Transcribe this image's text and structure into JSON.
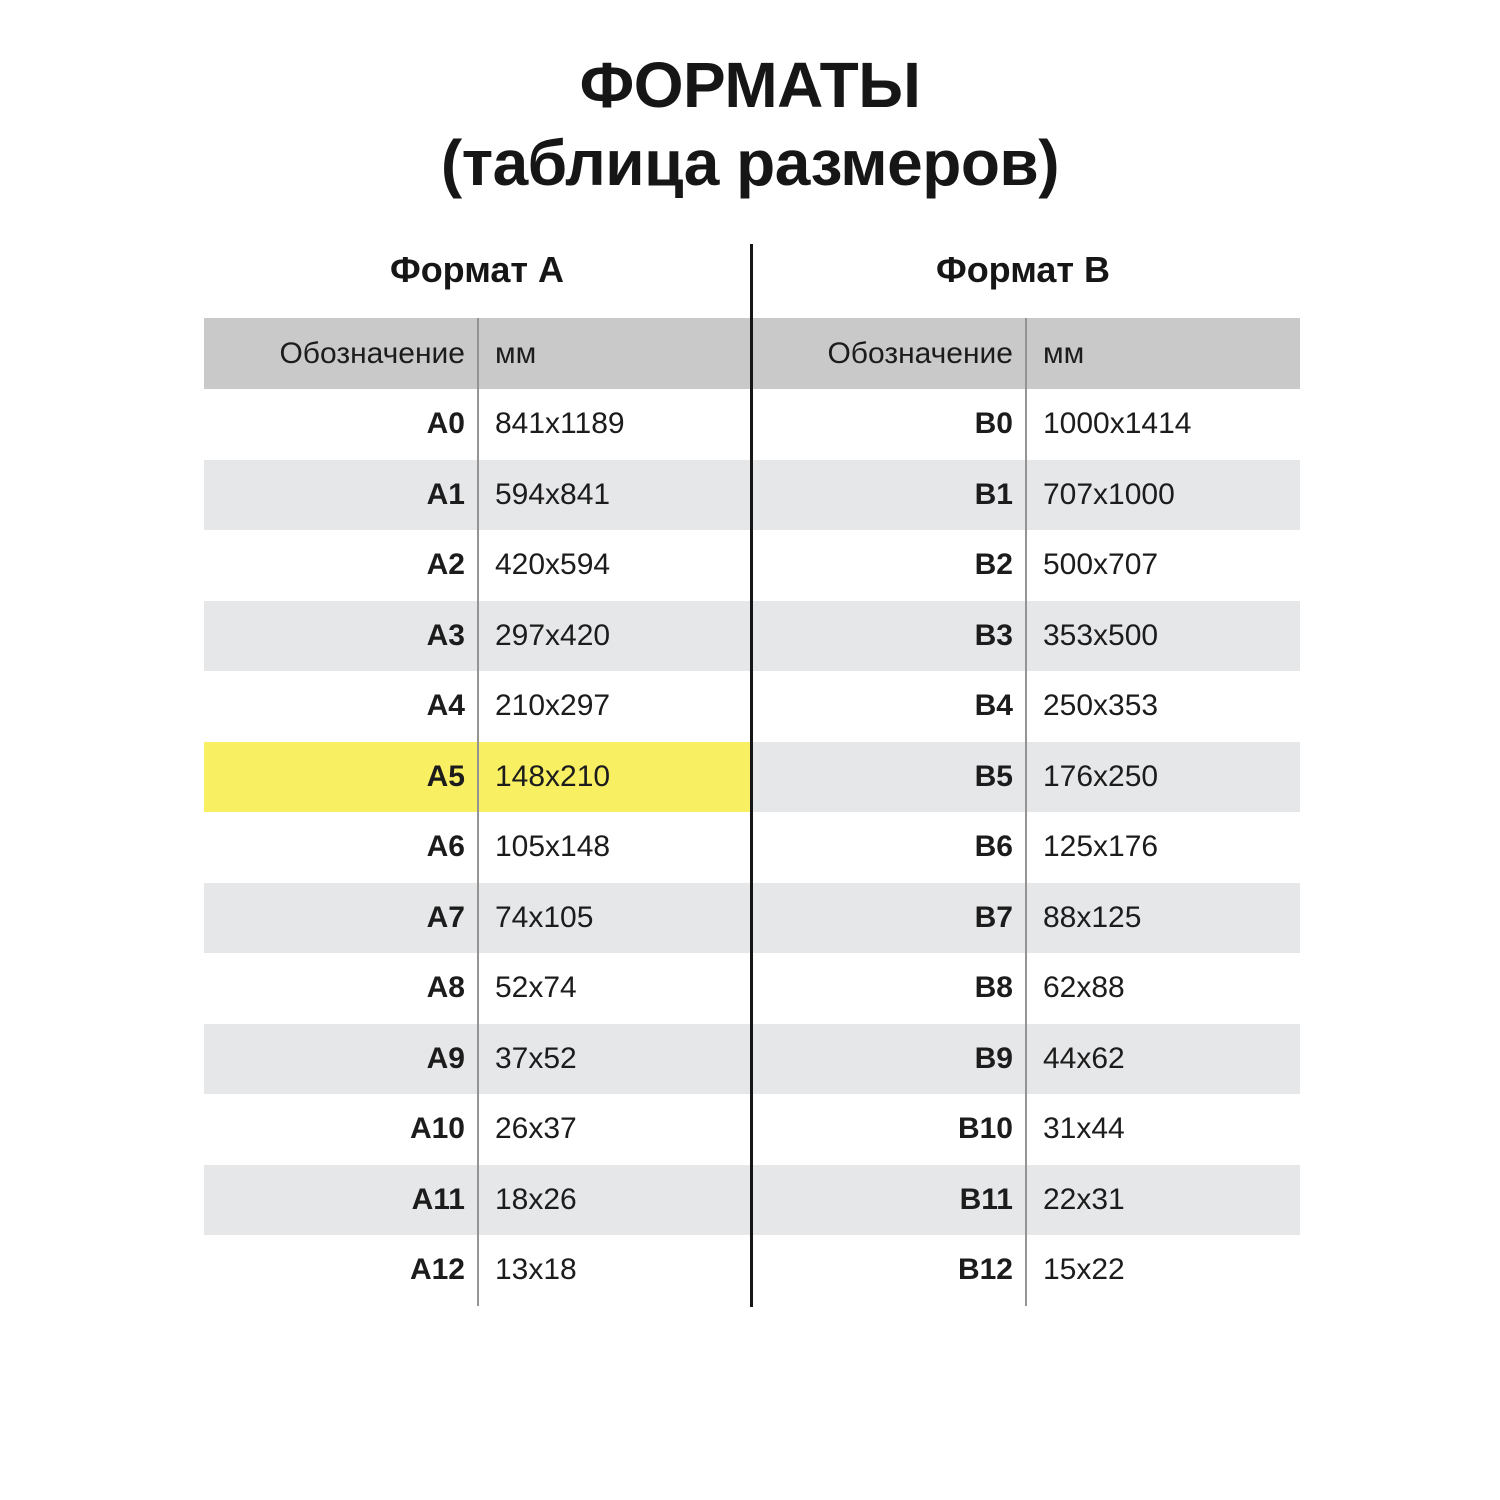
{
  "title": {
    "line1": "ФОРМАТЫ",
    "line2": "(таблица размеров)"
  },
  "format_a": {
    "title": "Формат A",
    "designation_header": "Обозначение",
    "mm_header": "мм"
  },
  "format_b": {
    "title": "Формат B",
    "designation_header": "Обозначение",
    "mm_header": "мм"
  },
  "table": {
    "rows": [
      {
        "a_designation": "A0",
        "a_mm": "841x1189",
        "b_designation": "B0",
        "b_mm": "1000x1414",
        "highlighted": false
      },
      {
        "a_designation": "A1",
        "a_mm": "594x841",
        "b_designation": "B1",
        "b_mm": "707x1000",
        "highlighted": false
      },
      {
        "a_designation": "A2",
        "a_mm": "420x594",
        "b_designation": "B2",
        "b_mm": "500x707",
        "highlighted": false
      },
      {
        "a_designation": "A3",
        "a_mm": "297x420",
        "b_designation": "B3",
        "b_mm": "353x500",
        "highlighted": false
      },
      {
        "a_designation": "A4",
        "a_mm": "210x297",
        "b_designation": "B4",
        "b_mm": "250x353",
        "highlighted": false
      },
      {
        "a_designation": "A5",
        "a_mm": "148x210",
        "b_designation": "B5",
        "b_mm": "176x250",
        "highlighted": true
      },
      {
        "a_designation": "A6",
        "a_mm": "105x148",
        "b_designation": "B6",
        "b_mm": "125x176",
        "highlighted": false
      },
      {
        "a_designation": "A7",
        "a_mm": "74x105",
        "b_designation": "B7",
        "b_mm": "88x125",
        "highlighted": false
      },
      {
        "a_designation": "A8",
        "a_mm": "52x74",
        "b_designation": "B8",
        "b_mm": "62x88",
        "highlighted": false
      },
      {
        "a_designation": "A9",
        "a_mm": "37x52",
        "b_designation": "B9",
        "b_mm": "44x62",
        "highlighted": false
      },
      {
        "a_designation": "A10",
        "a_mm": "26x37",
        "b_designation": "B10",
        "b_mm": "31x44",
        "highlighted": false
      },
      {
        "a_designation": "A11",
        "a_mm": "18x26",
        "b_designation": "B11",
        "b_mm": "22x31",
        "highlighted": false
      },
      {
        "a_designation": "A12",
        "a_mm": "13x18",
        "b_designation": "B12",
        "b_mm": "15x22",
        "highlighted": false
      }
    ]
  },
  "chart_data": {
    "type": "table",
    "title": "ФОРМАТЫ (таблица размеров)",
    "columns": [
      "Обозначение",
      "мм",
      "Обозначение",
      "мм"
    ],
    "groups": [
      "Формат A",
      "Формат B"
    ],
    "rows": [
      [
        "A0",
        "841x1189",
        "B0",
        "1000x1414"
      ],
      [
        "A1",
        "594x841",
        "B1",
        "707x1000"
      ],
      [
        "A2",
        "420x594",
        "B2",
        "500x707"
      ],
      [
        "A3",
        "297x420",
        "B3",
        "353x500"
      ],
      [
        "A4",
        "210x297",
        "B4",
        "250x353"
      ],
      [
        "A5",
        "148x210",
        "B5",
        "176x250"
      ],
      [
        "A6",
        "105x148",
        "B6",
        "125x176"
      ],
      [
        "A7",
        "74x105",
        "B7",
        "88x125"
      ],
      [
        "A8",
        "52x74",
        "B8",
        "62x88"
      ],
      [
        "A9",
        "37x52",
        "B9",
        "44x62"
      ],
      [
        "A10",
        "26x37",
        "B10",
        "31x44"
      ],
      [
        "A11",
        "18x26",
        "B11",
        "22x31"
      ],
      [
        "A12",
        "13x18",
        "B12",
        "15x22"
      ]
    ],
    "highlighted_row": "A5"
  },
  "colors": {
    "header_bg": "#c9c9c9",
    "stripe_bg": "#e6e7e9",
    "highlight_bg": "#f9ef62",
    "divider_line": "#949494",
    "center_rule": "#161616",
    "text": "#1c1c1c",
    "background": "#ffffff"
  }
}
